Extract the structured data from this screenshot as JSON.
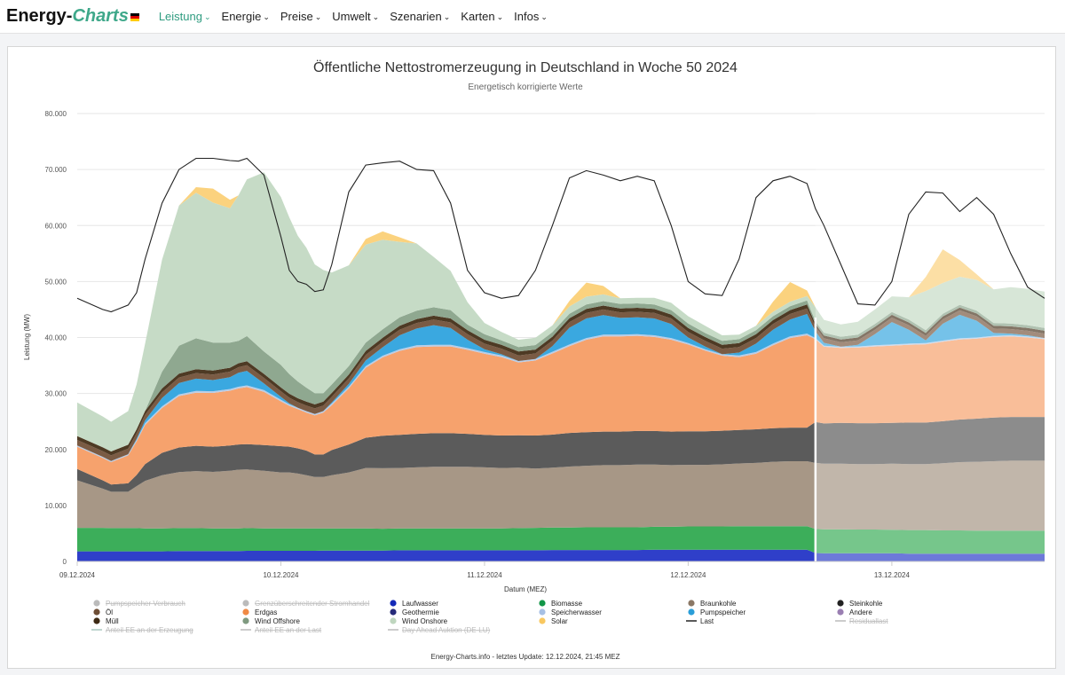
{
  "nav": {
    "brand_main": "Energy-",
    "brand_accent": "Charts",
    "items": [
      {
        "label": "Leistung",
        "active": true
      },
      {
        "label": "Energie",
        "active": false
      },
      {
        "label": "Preise",
        "active": false
      },
      {
        "label": "Umwelt",
        "active": false
      },
      {
        "label": "Szenarien",
        "active": false
      },
      {
        "label": "Karten",
        "active": false
      },
      {
        "label": "Infos",
        "active": false
      }
    ]
  },
  "chart_data": {
    "type": "area",
    "title": "Öffentliche Nettostromerzeugung in Deutschland in Woche 50 2024",
    "subtitle": "Energetisch korrigierte Werte",
    "xlabel": "Datum (MEZ)",
    "ylabel": "Leistung (MW)",
    "ylim": [
      0,
      80000
    ],
    "yticks": [
      0,
      10000,
      20000,
      30000,
      40000,
      50000,
      60000,
      70000,
      80000
    ],
    "ytick_labels": [
      "0",
      "10.000",
      "20.000",
      "30.000",
      "40.000",
      "50.000",
      "60.000",
      "70.000",
      "80.000"
    ],
    "xlim": [
      0,
      114
    ],
    "x_unit": "Stunden ab 09.12.2024 00:00",
    "xticks": [
      0,
      24,
      48,
      72,
      96
    ],
    "xtick_labels": [
      "09.12.2024",
      "10.12.2024",
      "11.12.2024",
      "12.12.2024",
      "13.12.2024"
    ],
    "forecast_from": 87,
    "grid": true,
    "legend_position": "bottom",
    "x": [
      0,
      3,
      4,
      6,
      7,
      8,
      10,
      12,
      14,
      16,
      18,
      19,
      20,
      22,
      24,
      25,
      26,
      27,
      28,
      29,
      30,
      32,
      34,
      36,
      38,
      40,
      42,
      44,
      46,
      48,
      50,
      52,
      54,
      56,
      58,
      60,
      62,
      64,
      66,
      68,
      70,
      72,
      74,
      76,
      78,
      80,
      82,
      84,
      86,
      87,
      88,
      90,
      92,
      94,
      96,
      98,
      100,
      102,
      104,
      106,
      108,
      110,
      112,
      114
    ],
    "series": [
      {
        "name": "Laufwasser",
        "color": "#2f3fc9",
        "values": [
          1800,
          1800,
          1800,
          1800,
          1800,
          1800,
          1800,
          1850,
          1850,
          1850,
          1850,
          1850,
          1900,
          1900,
          1900,
          1900,
          1900,
          1900,
          1900,
          1950,
          1950,
          1950,
          1950,
          1950,
          2000,
          2000,
          2000,
          2000,
          2000,
          2000,
          2000,
          2000,
          2000,
          2050,
          2050,
          2050,
          2050,
          2050,
          2050,
          2100,
          2100,
          2100,
          2100,
          2100,
          2100,
          2100,
          2100,
          2100,
          2100,
          1500,
          1450,
          1450,
          1450,
          1450,
          1450,
          1400,
          1400,
          1400,
          1400,
          1400,
          1400,
          1400,
          1400,
          1400
        ]
      },
      {
        "name": "Biomasse",
        "color": "#3cae5a",
        "values": [
          4200,
          4200,
          4150,
          4150,
          4150,
          4100,
          4100,
          4100,
          4100,
          4050,
          4050,
          4050,
          4050,
          4000,
          4000,
          4000,
          4000,
          4000,
          4000,
          3950,
          3950,
          3950,
          3950,
          3900,
          3900,
          3900,
          3900,
          3900,
          3900,
          3900,
          3900,
          3950,
          4000,
          4000,
          4000,
          4050,
          4050,
          4050,
          4050,
          4100,
          4100,
          4150,
          4150,
          4150,
          4200,
          4200,
          4200,
          4200,
          4200,
          4300,
          4300,
          4300,
          4250,
          4250,
          4200,
          4200,
          4200,
          4150,
          4150,
          4100,
          4100,
          4100,
          4100,
          4100
        ]
      },
      {
        "name": "Braunkohle",
        "color": "#a79786",
        "values": [
          8500,
          7000,
          6500,
          6500,
          7500,
          8500,
          9500,
          10000,
          10200,
          10100,
          10300,
          10500,
          10500,
          10300,
          10000,
          10000,
          9800,
          9500,
          9200,
          9200,
          9500,
          10000,
          10800,
          10800,
          10800,
          10900,
          11000,
          11000,
          11000,
          10900,
          10800,
          10800,
          10600,
          10700,
          10900,
          11000,
          11100,
          11100,
          11200,
          11100,
          11000,
          11000,
          11000,
          11100,
          11200,
          11300,
          11500,
          11600,
          11600,
          11800,
          11700,
          11700,
          11700,
          11700,
          11800,
          11800,
          11800,
          12000,
          12200,
          12300,
          12400,
          12500,
          12500,
          12500
        ]
      },
      {
        "name": "Steinkohle",
        "color": "#5b5b5b",
        "values": [
          2000,
          1500,
          1300,
          1500,
          2000,
          3000,
          4000,
          4400,
          4500,
          4500,
          4500,
          4500,
          4500,
          4600,
          4700,
          4600,
          4500,
          4400,
          4000,
          4000,
          4500,
          5000,
          5400,
          5800,
          5900,
          6000,
          6000,
          6000,
          5900,
          5800,
          5800,
          5800,
          5900,
          5900,
          6000,
          6000,
          6000,
          6000,
          6000,
          6000,
          6000,
          6000,
          6000,
          6000,
          6000,
          6000,
          6000,
          6000,
          6000,
          7300,
          7200,
          7300,
          7300,
          7300,
          7300,
          7400,
          7400,
          7500,
          7600,
          7700,
          7800,
          7800,
          7800,
          7800
        ]
      },
      {
        "name": "Erdgas",
        "color": "#f6a26d",
        "values": [
          4000,
          4000,
          4000,
          5000,
          6000,
          7000,
          8000,
          9200,
          9500,
          9600,
          9800,
          10000,
          10200,
          9500,
          8000,
          7300,
          7000,
          6800,
          7000,
          7500,
          8000,
          10000,
          12500,
          14000,
          15000,
          15500,
          15500,
          15500,
          15000,
          14500,
          14000,
          13000,
          13400,
          14500,
          15500,
          16500,
          17000,
          17000,
          17000,
          16800,
          16400,
          15500,
          14400,
          13400,
          13000,
          13500,
          14800,
          16000,
          16500,
          14800,
          13700,
          13400,
          13500,
          13700,
          13800,
          13900,
          14000,
          14200,
          14300,
          14300,
          14400,
          14400,
          14200,
          13900
        ]
      },
      {
        "name": "Speicherwasser",
        "color": "#b8cde8",
        "values": [
          200,
          200,
          200,
          200,
          250,
          300,
          300,
          300,
          300,
          300,
          300,
          300,
          300,
          300,
          300,
          250,
          250,
          250,
          250,
          250,
          300,
          300,
          300,
          300,
          300,
          300,
          300,
          300,
          300,
          300,
          300,
          250,
          250,
          300,
          300,
          300,
          300,
          300,
          300,
          300,
          300,
          250,
          250,
          250,
          300,
          300,
          300,
          300,
          300,
          200,
          200,
          200,
          200,
          200,
          200,
          200,
          200,
          200,
          200,
          200,
          200,
          200,
          200,
          200
        ]
      },
      {
        "name": "Pumpspeicher",
        "color": "#3aa8e0",
        "values": [
          0,
          0,
          0,
          0,
          200,
          500,
          1500,
          2000,
          2200,
          2000,
          2100,
          2500,
          2600,
          1200,
          500,
          200,
          0,
          0,
          0,
          0,
          200,
          500,
          1000,
          1500,
          2500,
          3000,
          3500,
          3000,
          1500,
          500,
          200,
          0,
          0,
          1000,
          3000,
          3500,
          3500,
          3000,
          3000,
          3000,
          2500,
          1000,
          500,
          0,
          500,
          1500,
          2500,
          3000,
          3500,
          1200,
          500,
          0,
          300,
          2000,
          4000,
          2500,
          500,
          3000,
          4200,
          3000,
          500,
          300,
          200,
          0
        ]
      },
      {
        "name": "Öl",
        "color": "#7a5b44",
        "values": [
          1000,
          1000,
          1000,
          1000,
          1000,
          1000,
          1000,
          1000,
          1000,
          1000,
          1000,
          1000,
          1000,
          1000,
          1000,
          1000,
          1000,
          1000,
          1000,
          1000,
          1000,
          1000,
          1000,
          1000,
          1000,
          1000,
          1000,
          1000,
          1000,
          1000,
          1000,
          1000,
          1000,
          1000,
          1000,
          1000,
          1000,
          1000,
          1000,
          1000,
          1000,
          1000,
          1000,
          1000,
          1000,
          1000,
          1000,
          1000,
          1000,
          800,
          800,
          800,
          800,
          800,
          800,
          800,
          800,
          800,
          800,
          800,
          800,
          800,
          800,
          800
        ]
      },
      {
        "name": "Müll",
        "color": "#4e3a24",
        "values": [
          700,
          700,
          700,
          700,
          700,
          700,
          700,
          700,
          700,
          700,
          700,
          700,
          700,
          700,
          700,
          700,
          700,
          700,
          700,
          700,
          700,
          700,
          700,
          700,
          700,
          700,
          700,
          700,
          700,
          700,
          700,
          700,
          700,
          700,
          700,
          700,
          700,
          700,
          700,
          700,
          700,
          700,
          700,
          700,
          700,
          700,
          700,
          700,
          700,
          500,
          500,
          500,
          500,
          500,
          500,
          500,
          500,
          500,
          500,
          500,
          500,
          500,
          500,
          500
        ]
      },
      {
        "name": "Wind Offshore",
        "color": "#8fa890",
        "values": [
          0,
          0,
          0,
          0,
          0,
          0,
          3000,
          5000,
          5500,
          5000,
          4500,
          4000,
          4500,
          4000,
          4000,
          3500,
          3000,
          2500,
          2000,
          1500,
          1500,
          1500,
          1500,
          1500,
          1500,
          1500,
          1500,
          1500,
          1000,
          1000,
          800,
          800,
          800,
          800,
          800,
          800,
          800,
          800,
          800,
          800,
          800,
          800,
          700,
          700,
          700,
          700,
          700,
          700,
          700,
          500,
          500,
          500,
          500,
          500,
          500,
          500,
          500,
          500,
          500,
          500,
          500,
          500,
          500,
          500
        ]
      },
      {
        "name": "Wind Onshore",
        "color": "#c6dbc6",
        "values": [
          6000,
          5500,
          5300,
          6000,
          8000,
          12000,
          20000,
          25000,
          26000,
          25000,
          24000,
          26000,
          28000,
          32000,
          30000,
          28000,
          26000,
          25000,
          23000,
          22000,
          20000,
          18000,
          17500,
          16000,
          13500,
          12000,
          9000,
          7000,
          4000,
          2000,
          1500,
          1300,
          1300,
          1200,
          1300,
          1400,
          1200,
          1000,
          1000,
          1200,
          1300,
          1300,
          1300,
          1000,
          800,
          800,
          800,
          800,
          800,
          2500,
          2300,
          2200,
          2300,
          2600,
          2800,
          4000,
          7000,
          5500,
          5000,
          5500,
          6000,
          6500,
          6500,
          6500
        ]
      },
      {
        "name": "Solar",
        "color": "#fbd27e",
        "values": [
          0,
          0,
          0,
          0,
          0,
          0,
          0,
          0,
          1000,
          2500,
          1500,
          0,
          0,
          0,
          0,
          0,
          0,
          0,
          0,
          0,
          0,
          0,
          1000,
          1500,
          800,
          0,
          0,
          0,
          0,
          0,
          0,
          0,
          0,
          0,
          1000,
          2500,
          1500,
          0,
          0,
          0,
          0,
          0,
          0,
          0,
          0,
          0,
          1800,
          3500,
          1000,
          0,
          0,
          0,
          0,
          0,
          0,
          0,
          2500,
          6000,
          3000,
          1000,
          0,
          0,
          0,
          0
        ]
      }
    ],
    "last": {
      "name": "Last",
      "color": "#222222",
      "values": [
        47000,
        45000,
        44600,
        45800,
        48000,
        54000,
        64000,
        70000,
        72000,
        72000,
        71600,
        71500,
        72000,
        69000,
        58000,
        52000,
        50000,
        49500,
        48200,
        48500,
        53000,
        66000,
        70800,
        71200,
        71500,
        70000,
        69800,
        64000,
        52000,
        48000,
        47000,
        47500,
        52000,
        60000,
        68500,
        69800,
        69000,
        68000,
        68800,
        68000,
        60000,
        50000,
        47800,
        47500,
        54000,
        65000,
        68000,
        68800,
        67500,
        63000,
        60000,
        53000,
        46000,
        45800,
        50000,
        62000,
        66000,
        65800,
        62500,
        65000,
        62000,
        55000,
        49000,
        47000
      ]
    },
    "legend": [
      {
        "label": "Pumpspeicher Verbrauch",
        "color": "#bbbbbb",
        "kind": "dot",
        "hidden": true
      },
      {
        "label": "Grenzüberschreitender Stromhandel",
        "color": "#bbbbbb",
        "kind": "dot",
        "hidden": true
      },
      {
        "label": "Laufwasser",
        "color": "#1429b8",
        "kind": "dot",
        "hidden": false
      },
      {
        "label": "Biomasse",
        "color": "#129648",
        "kind": "dot",
        "hidden": false
      },
      {
        "label": "Braunkohle",
        "color": "#8b7765",
        "kind": "dot",
        "hidden": false
      },
      {
        "label": "Steinkohle",
        "color": "#222222",
        "kind": "dot",
        "hidden": false
      },
      {
        "label": "Öl",
        "color": "#6e4e36",
        "kind": "dot",
        "hidden": false
      },
      {
        "label": "Erdgas",
        "color": "#f08a45",
        "kind": "dot",
        "hidden": false
      },
      {
        "label": "Geothermie",
        "color": "#272b7a",
        "kind": "dot",
        "hidden": false
      },
      {
        "label": "Speicherwasser",
        "color": "#a7c0e4",
        "kind": "dot",
        "hidden": false
      },
      {
        "label": "Pumpspeicher",
        "color": "#2a9ed8",
        "kind": "dot",
        "hidden": false
      },
      {
        "label": "Andere",
        "color": "#9a7fb2",
        "kind": "dot",
        "hidden": false
      },
      {
        "label": "Müll",
        "color": "#3e2a14",
        "kind": "dot",
        "hidden": false
      },
      {
        "label": "Wind Offshore",
        "color": "#7f9a80",
        "kind": "dot",
        "hidden": false
      },
      {
        "label": "Wind Onshore",
        "color": "#bfd6bf",
        "kind": "dot",
        "hidden": false
      },
      {
        "label": "Solar",
        "color": "#f9c860",
        "kind": "dot",
        "hidden": false
      },
      {
        "label": "Last",
        "color": "#222222",
        "kind": "line",
        "hidden": false
      },
      {
        "label": "Residuallast",
        "color": "#bbbbbb",
        "kind": "line",
        "hidden": true
      },
      {
        "label": "Anteil EE an der Erzeugung",
        "color": "#aac8c0",
        "kind": "line",
        "hidden": true
      },
      {
        "label": "Anteil EE an der Last",
        "color": "#bbbbbb",
        "kind": "line",
        "hidden": true
      },
      {
        "label": "Day Ahead Auktion (DE-LU)",
        "color": "#bbbbbb",
        "kind": "line",
        "hidden": true
      }
    ],
    "credit": "Energy-Charts.info - letztes Update: 12.12.2024, 21:45 MEZ"
  }
}
